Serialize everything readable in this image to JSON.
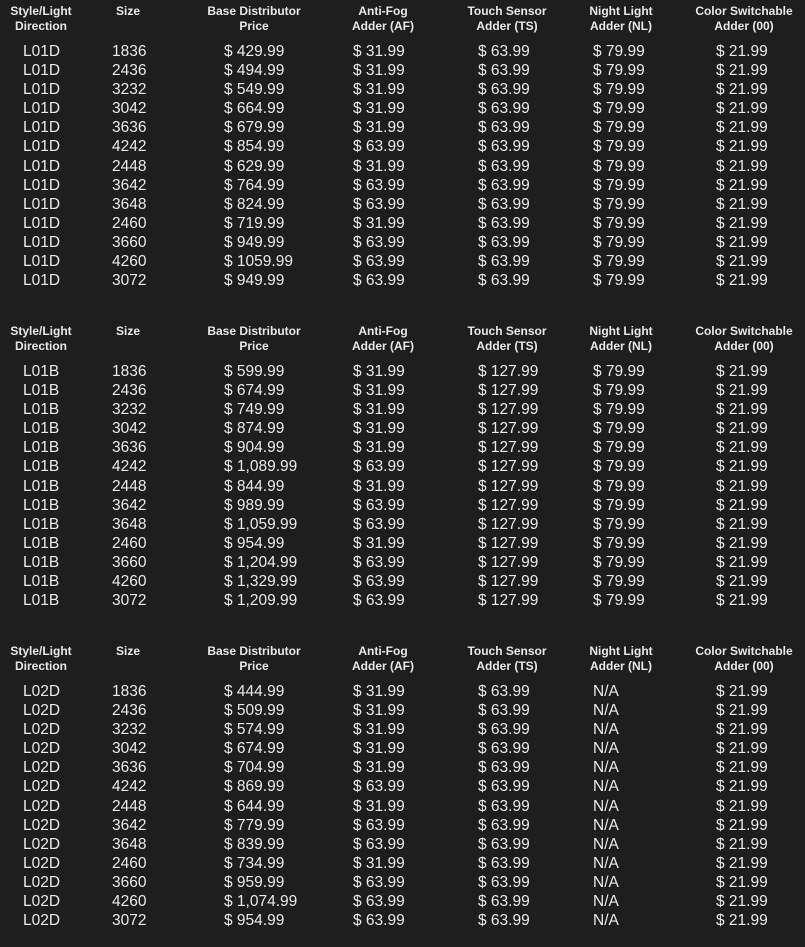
{
  "headers": [
    "Style/Light\nDirection",
    "Size",
    "Base Distributor\nPrice",
    "Anti-Fog\nAdder (AF)",
    "Touch Sensor\nAdder (TS)",
    "Night Light\nAdder (NL)",
    "Color Switchable\nAdder (00)"
  ],
  "tables": [
    {
      "rows": [
        [
          "L01D",
          "1836",
          "$ 429.99",
          "$ 31.99",
          "$ 63.99",
          "$ 79.99",
          "$ 21.99"
        ],
        [
          "L01D",
          "2436",
          "$ 494.99",
          "$ 31.99",
          "$ 63.99",
          "$ 79.99",
          "$ 21.99"
        ],
        [
          "L01D",
          "3232",
          "$ 549.99",
          "$ 31.99",
          "$ 63.99",
          "$ 79.99",
          "$ 21.99"
        ],
        [
          "L01D",
          "3042",
          "$ 664.99",
          "$ 31.99",
          "$ 63.99",
          "$ 79.99",
          "$ 21.99"
        ],
        [
          "L01D",
          "3636",
          "$ 679.99",
          "$ 31.99",
          "$ 63.99",
          "$ 79.99",
          "$ 21.99"
        ],
        [
          "L01D",
          "4242",
          "$ 854.99",
          "$ 63.99",
          "$ 63.99",
          "$ 79.99",
          "$ 21.99"
        ],
        [
          "L01D",
          "2448",
          "$ 629.99",
          "$ 31.99",
          "$ 63.99",
          "$ 79.99",
          "$ 21.99"
        ],
        [
          "L01D",
          "3642",
          "$ 764.99",
          "$ 63.99",
          "$ 63.99",
          "$ 79.99",
          "$ 21.99"
        ],
        [
          "L01D",
          "3648",
          "$ 824.99",
          "$ 63.99",
          "$ 63.99",
          "$ 79.99",
          "$ 21.99"
        ],
        [
          "L01D",
          "2460",
          "$ 719.99",
          "$ 31.99",
          "$ 63.99",
          "$ 79.99",
          "$ 21.99"
        ],
        [
          "L01D",
          "3660",
          "$ 949.99",
          "$ 63.99",
          "$ 63.99",
          "$ 79.99",
          "$ 21.99"
        ],
        [
          "L01D",
          "4260",
          "$ 1059.99",
          "$ 63.99",
          "$ 63.99",
          "$ 79.99",
          "$ 21.99"
        ],
        [
          "L01D",
          "3072",
          "$ 949.99",
          "$ 63.99",
          "$ 63.99",
          "$ 79.99",
          "$ 21.99"
        ]
      ]
    },
    {
      "rows": [
        [
          "L01B",
          "1836",
          "$ 599.99",
          "$ 31.99",
          "$ 127.99",
          "$ 79.99",
          "$ 21.99"
        ],
        [
          "L01B",
          "2436",
          "$ 674.99",
          "$ 31.99",
          "$ 127.99",
          "$ 79.99",
          "$ 21.99"
        ],
        [
          "L01B",
          "3232",
          "$ 749.99",
          "$ 31.99",
          "$ 127.99",
          "$ 79.99",
          "$ 21.99"
        ],
        [
          "L01B",
          "3042",
          "$ 874.99",
          "$ 31.99",
          "$ 127.99",
          "$ 79.99",
          "$ 21.99"
        ],
        [
          "L01B",
          "3636",
          "$ 904.99",
          "$ 31.99",
          "$ 127.99",
          "$ 79.99",
          "$ 21.99"
        ],
        [
          "L01B",
          "4242",
          "$ 1,089.99",
          "$ 63.99",
          "$ 127.99",
          "$ 79.99",
          "$ 21.99"
        ],
        [
          "L01B",
          "2448",
          "$ 844.99",
          "$ 31.99",
          "$ 127.99",
          "$ 79.99",
          "$ 21.99"
        ],
        [
          "L01B",
          "3642",
          "$ 989.99",
          "$ 63.99",
          "$ 127.99",
          "$ 79.99",
          "$ 21.99"
        ],
        [
          "L01B",
          "3648",
          "$ 1,059.99",
          "$ 63.99",
          "$ 127.99",
          "$ 79.99",
          "$ 21.99"
        ],
        [
          "L01B",
          "2460",
          "$ 954.99",
          "$ 31.99",
          "$ 127.99",
          "$ 79.99",
          "$ 21.99"
        ],
        [
          "L01B",
          "3660",
          "$ 1,204.99",
          "$ 63.99",
          "$ 127.99",
          "$ 79.99",
          "$ 21.99"
        ],
        [
          "L01B",
          "4260",
          "$ 1,329.99",
          "$ 63.99",
          "$ 127.99",
          "$ 79.99",
          "$ 21.99"
        ],
        [
          "L01B",
          "3072",
          "$ 1,209.99",
          "$ 63.99",
          "$ 127.99",
          "$ 79.99",
          "$ 21.99"
        ]
      ]
    },
    {
      "rows": [
        [
          "L02D",
          "1836",
          "$ 444.99",
          "$ 31.99",
          "$ 63.99",
          "N/A",
          "$ 21.99"
        ],
        [
          "L02D",
          "2436",
          "$ 509.99",
          "$ 31.99",
          "$ 63.99",
          "N/A",
          "$ 21.99"
        ],
        [
          "L02D",
          "3232",
          "$ 574.99",
          "$ 31.99",
          "$ 63.99",
          "N/A",
          "$ 21.99"
        ],
        [
          "L02D",
          "3042",
          "$ 674.99",
          "$ 31.99",
          "$ 63.99",
          "N/A",
          "$ 21.99"
        ],
        [
          "L02D",
          "3636",
          "$ 704.99",
          "$ 31.99",
          "$ 63.99",
          "N/A",
          "$ 21.99"
        ],
        [
          "L02D",
          "4242",
          "$ 869.99",
          "$ 63.99",
          "$ 63.99",
          "N/A",
          "$ 21.99"
        ],
        [
          "L02D",
          "2448",
          "$ 644.99",
          "$ 31.99",
          "$ 63.99",
          "N/A",
          "$ 21.99"
        ],
        [
          "L02D",
          "3642",
          "$ 779.99",
          "$ 63.99",
          "$ 63.99",
          "N/A",
          "$ 21.99"
        ],
        [
          "L02D",
          "3648",
          "$ 839.99",
          "$ 63.99",
          "$ 63.99",
          "N/A",
          "$ 21.99"
        ],
        [
          "L02D",
          "2460",
          "$ 734.99",
          "$ 31.99",
          "$ 63.99",
          "N/A",
          "$ 21.99"
        ],
        [
          "L02D",
          "3660",
          "$ 959.99",
          "$ 63.99",
          "$ 63.99",
          "N/A",
          "$ 21.99"
        ],
        [
          "L02D",
          "4260",
          "$ 1,074.99",
          "$ 63.99",
          "$ 63.99",
          "N/A",
          "$ 21.99"
        ],
        [
          "L02D",
          "3072",
          "$ 954.99",
          "$ 63.99",
          "$ 63.99",
          "N/A",
          "$ 21.99"
        ]
      ]
    }
  ]
}
